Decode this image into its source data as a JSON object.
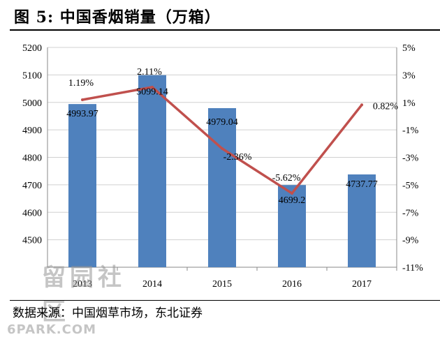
{
  "header": {
    "title": "图 5:  中国香烟销量（万箱）"
  },
  "footer": {
    "source": "数据来源：中国烟草市场，东北证券"
  },
  "watermark": {
    "line1": "留园社区",
    "line2": "6PARK.COM"
  },
  "chart_data": {
    "type": "bar",
    "title": "中国香烟销量（万箱）",
    "categories": [
      "2013",
      "2014",
      "2015",
      "2016",
      "2017"
    ],
    "series": [
      {
        "type": "bar",
        "axis": "left",
        "color": "#4f81bd",
        "values": [
          4993.97,
          5099.14,
          4979.04,
          4699.2,
          4737.77
        ],
        "labels": [
          "4993.97",
          "5099.14",
          "4979.04",
          "4699.2",
          "4737.77"
        ]
      },
      {
        "type": "line",
        "axis": "right",
        "color": "#c0504d",
        "values": [
          1.19,
          2.11,
          -2.36,
          -5.62,
          0.82
        ],
        "labels": [
          "1.19%",
          "2.11%",
          "-2.36%",
          "-5.62%",
          "0.82%"
        ]
      }
    ],
    "y_left": {
      "min": 4400,
      "max": 5200,
      "ticks": [
        "5200",
        "5100",
        "5000",
        "4900",
        "4800",
        "4700",
        "4600",
        "4500"
      ]
    },
    "y_right": {
      "min": -11,
      "max": 5,
      "ticks": [
        "5%",
        "3%",
        "1%",
        "-1%",
        "-3%",
        "-5%",
        "-7%",
        "-9%",
        "-11%"
      ]
    },
    "grid": true,
    "legend": "none"
  }
}
